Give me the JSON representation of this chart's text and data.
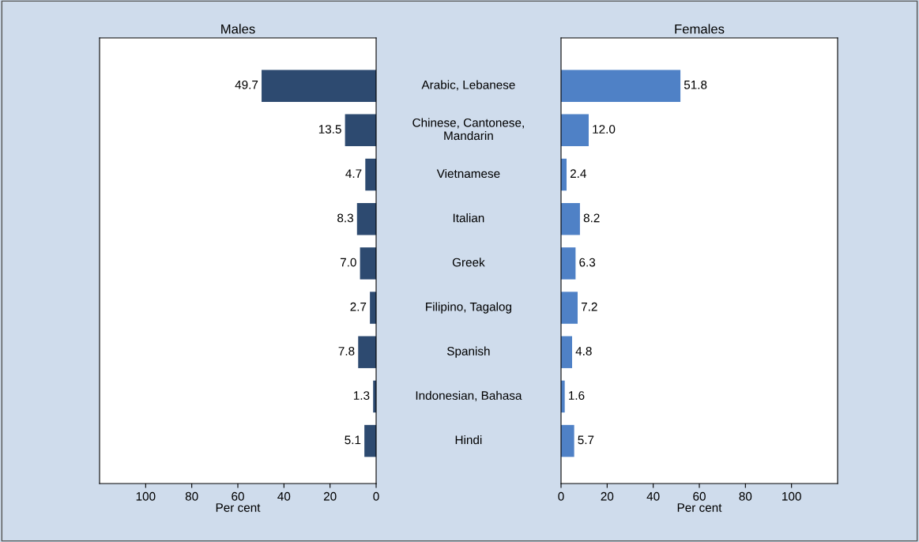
{
  "chart_data": [
    {
      "type": "bar",
      "orientation": "horizontal",
      "title": "Males",
      "xlabel": "Per cent",
      "categories": [
        "Arabic, Lebanese",
        "Chinese, Cantonese,\nMandarin",
        "Vietnamese",
        "Italian",
        "Greek",
        "Filipino, Tagalog",
        "Spanish",
        "Indonesian, Bahasa",
        "Hindi"
      ],
      "values": [
        49.7,
        13.5,
        4.7,
        8.3,
        7.0,
        2.7,
        7.8,
        1.3,
        5.1
      ],
      "value_labels": [
        "49.7",
        "13.5",
        "4.7",
        "8.3",
        "7.0",
        "2.7",
        "7.8",
        "1.3",
        "5.1"
      ],
      "color": "#2d4a70",
      "xlim": [
        120,
        0
      ],
      "xticks": [
        100,
        80,
        60,
        40,
        20,
        0
      ]
    },
    {
      "type": "bar",
      "orientation": "horizontal",
      "title": "Females",
      "xlabel": "Per cent",
      "values": [
        51.8,
        12.0,
        2.4,
        8.2,
        6.3,
        7.2,
        4.8,
        1.6,
        5.7
      ],
      "value_labels": [
        "51.8",
        "12.0",
        "2.4",
        "8.2",
        "6.3",
        "7.2",
        "4.8",
        "1.6",
        "5.7"
      ],
      "color": "#4f81c6",
      "xlim": [
        0,
        120
      ],
      "xticks": [
        0,
        20,
        40,
        60,
        80,
        100
      ]
    }
  ]
}
